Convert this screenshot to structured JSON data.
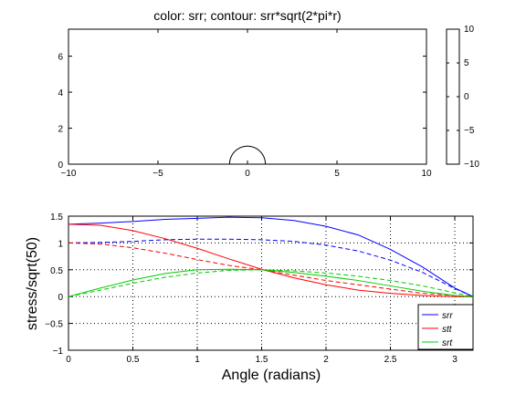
{
  "chart_data": [
    {
      "type": "contour",
      "title": "color: srr; contour: srr*sqrt(2*pi*r)",
      "xlabel": "",
      "ylabel": "",
      "xlim": [
        -10,
        10
      ],
      "ylim": [
        0,
        7.5
      ],
      "x_ticks": [
        "−10",
        "−5",
        "0",
        "5",
        "10"
      ],
      "y_ticks": [
        "0",
        "2",
        "4",
        "6"
      ],
      "hole_radius": 1,
      "colorbar": {
        "range": [
          -10,
          10
        ],
        "ticks": [
          "10",
          "5",
          "0",
          "−5",
          "−10"
        ]
      }
    },
    {
      "type": "line",
      "title": "",
      "xlabel": "Angle (radians)",
      "ylabel": "stress/sqrt(50)",
      "xlim": [
        0,
        3.1416
      ],
      "ylim": [
        -1,
        1.5
      ],
      "grid": "dotted",
      "legend_position": "bottom-right",
      "x_ticks": [
        "0",
        "0.5",
        "1",
        "1.5",
        "2",
        "2.5",
        "3"
      ],
      "y_ticks": [
        "−1",
        "−0.5",
        "0",
        "0.5",
        "1",
        "1.5"
      ],
      "x": [
        0,
        0.25,
        0.5,
        0.75,
        1.0,
        1.25,
        1.5,
        1.75,
        2.0,
        2.25,
        2.5,
        2.75,
        3.0,
        3.1416
      ],
      "series": [
        {
          "name": "srr",
          "color": "#0000ff",
          "style": "solid",
          "values": [
            1.35,
            1.37,
            1.4,
            1.44,
            1.46,
            1.48,
            1.47,
            1.42,
            1.31,
            1.15,
            0.88,
            0.55,
            0.16,
            0.0
          ]
        },
        {
          "name": "",
          "color": "#0000ff",
          "style": "dashed",
          "values": [
            1.0,
            1.01,
            1.03,
            1.06,
            1.07,
            1.07,
            1.06,
            1.03,
            0.96,
            0.85,
            0.68,
            0.45,
            0.15,
            0.0
          ]
        },
        {
          "name": "stt",
          "color": "#ff0000",
          "style": "solid",
          "values": [
            1.35,
            1.33,
            1.23,
            1.08,
            0.9,
            0.7,
            0.51,
            0.35,
            0.22,
            0.12,
            0.06,
            0.02,
            0.0,
            0.0
          ]
        },
        {
          "name": "",
          "color": "#ff0000",
          "style": "dashed",
          "values": [
            1.0,
            0.98,
            0.91,
            0.81,
            0.69,
            0.58,
            0.5,
            0.4,
            0.3,
            0.22,
            0.14,
            0.06,
            0.02,
            0.0
          ]
        },
        {
          "name": "srt",
          "color": "#00cc00",
          "style": "solid",
          "values": [
            0.0,
            0.16,
            0.31,
            0.43,
            0.5,
            0.51,
            0.5,
            0.45,
            0.38,
            0.3,
            0.2,
            0.1,
            0.02,
            0.0
          ]
        },
        {
          "name": "",
          "color": "#00cc00",
          "style": "dashed",
          "values": [
            0.0,
            0.12,
            0.25,
            0.36,
            0.44,
            0.49,
            0.5,
            0.48,
            0.44,
            0.38,
            0.3,
            0.2,
            0.07,
            0.0
          ]
        }
      ]
    }
  ]
}
